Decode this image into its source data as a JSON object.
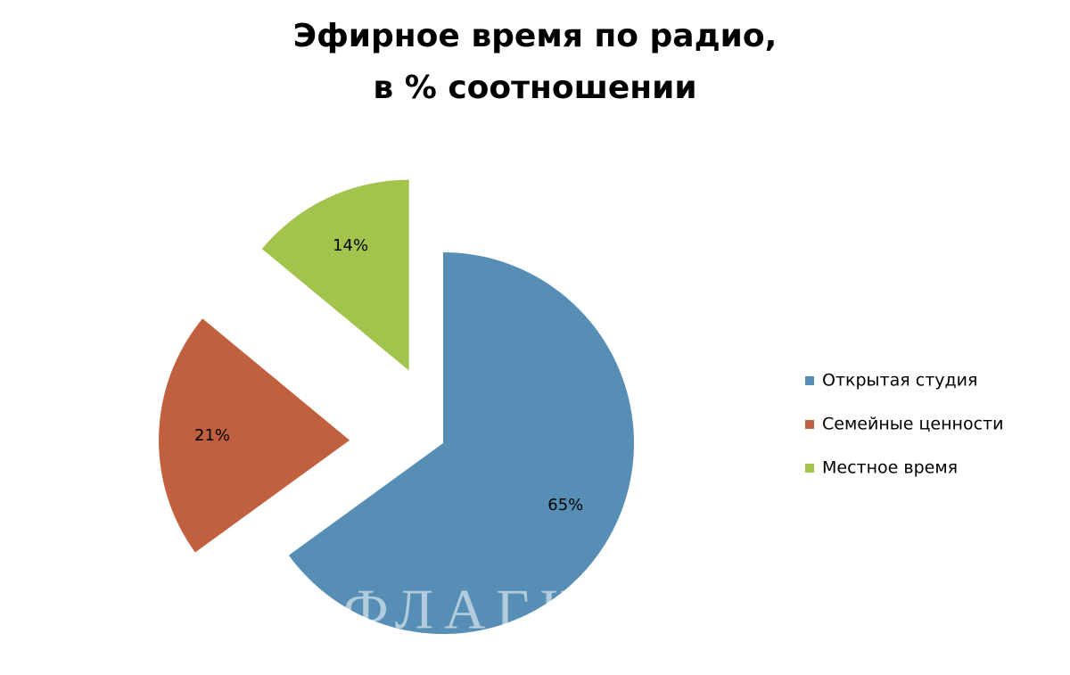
{
  "chart_data": {
    "type": "pie",
    "title": [
      "Эфирное время по радио,",
      "в % соотношении"
    ],
    "categories": [
      "Открытая студия",
      "Семейные ценности",
      "Местное время"
    ],
    "values": [
      65,
      21,
      14
    ],
    "value_labels": [
      "65%",
      "21%",
      "14%"
    ],
    "colors": [
      "#568eb5",
      "#c0603e",
      "#a2c44c"
    ],
    "legend": "right",
    "watermark": "ФЛАГШТОК"
  }
}
